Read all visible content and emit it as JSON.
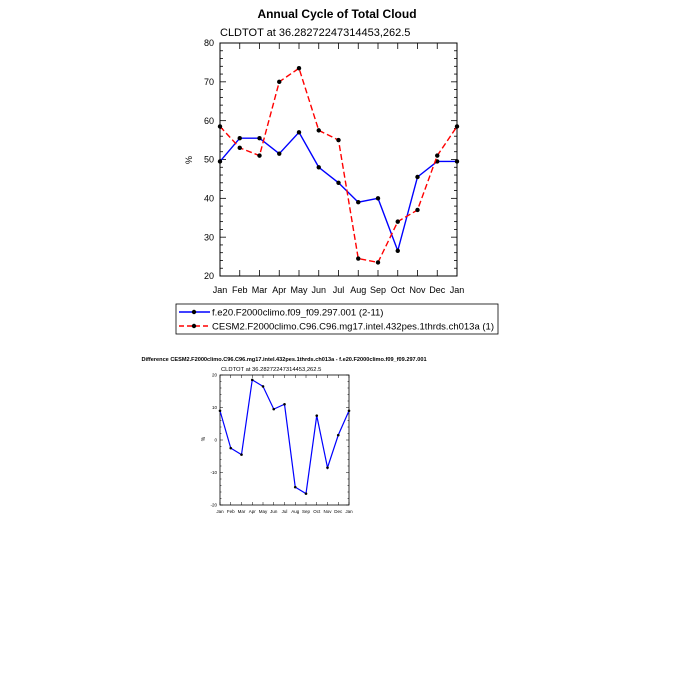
{
  "chart_data": [
    {
      "type": "line",
      "title": "Annual Cycle of Total Cloud",
      "subtitle": "CLDTOT at 36.28272247314453,262.5",
      "ylabel": "%",
      "xlabel": "",
      "categories": [
        "Jan",
        "Feb",
        "Mar",
        "Apr",
        "May",
        "Jun",
        "Jul",
        "Aug",
        "Sep",
        "Oct",
        "Nov",
        "Dec",
        "Jan"
      ],
      "ylim": [
        20,
        80
      ],
      "yticks": [
        20,
        30,
        40,
        50,
        60,
        70,
        80
      ],
      "grid": false,
      "legend_position": "bottom",
      "series": [
        {
          "name": "f.e20.F2000climo.f09_f09.297.001 (2-11)",
          "color": "#0000ff",
          "dash": "solid",
          "values": [
            49.5,
            55.5,
            55.5,
            51.5,
            57.0,
            48.0,
            44.0,
            39.0,
            40.0,
            26.5,
            45.5,
            49.5,
            49.5
          ]
        },
        {
          "name": "CESM2.F2000climo.C96.C96.mg17.intel.432pes.1thrds.ch013a (1)",
          "color": "#ff0000",
          "dash": "dashed",
          "values": [
            58.5,
            53.0,
            51.0,
            70.0,
            73.5,
            57.5,
            55.0,
            24.5,
            23.5,
            34.0,
            37.0,
            51.0,
            58.5
          ]
        }
      ]
    },
    {
      "type": "line",
      "title": "Difference CESM2.F2000climo.C96.C96.mg17.intel.432pes.1thrds.ch013a - f.e20.F2000climo.f09_f09.297.001",
      "subtitle": "CLDTOT at 36.28272247314453,262.5",
      "ylabel": "%",
      "xlabel": "",
      "categories": [
        "Jan",
        "Feb",
        "Mar",
        "Apr",
        "May",
        "Jun",
        "Jul",
        "Aug",
        "Sep",
        "Oct",
        "Nov",
        "Dec",
        "Jan"
      ],
      "ylim": [
        -20,
        20
      ],
      "yticks": [
        -20,
        -10,
        0,
        10,
        20
      ],
      "grid": false,
      "series": [
        {
          "color": "#0000ff",
          "dash": "solid",
          "values": [
            9.0,
            -2.5,
            -4.5,
            18.5,
            16.5,
            9.5,
            11.0,
            -14.5,
            -16.5,
            7.5,
            -8.5,
            1.5,
            9.0
          ]
        }
      ]
    }
  ]
}
